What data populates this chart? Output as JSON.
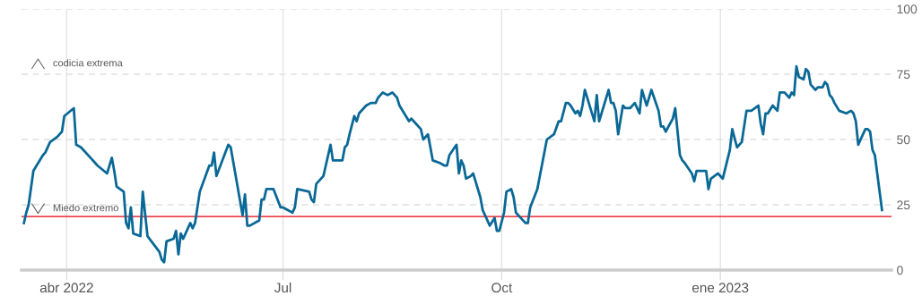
{
  "chart_data": {
    "type": "line",
    "x": [
      "2022-03-14",
      "2022-03-15",
      "2022-03-16",
      "2022-03-18",
      "2022-03-20",
      "2022-03-22",
      "2022-03-23",
      "2022-03-25",
      "2022-03-28",
      "2022-03-29",
      "2022-03-30",
      "2022-03-31",
      "2022-04-04",
      "2022-04-05",
      "2022-04-07",
      "2022-04-11",
      "2022-04-13",
      "2022-04-14",
      "2022-04-18",
      "2022-04-20",
      "2022-04-21",
      "2022-04-22",
      "2022-04-25",
      "2022-04-26",
      "2022-04-27",
      "2022-04-28",
      "2022-04-29",
      "2022-05-02",
      "2022-05-03",
      "2022-05-05",
      "2022-05-10",
      "2022-05-11",
      "2022-05-12",
      "2022-05-13",
      "2022-05-16",
      "2022-05-17",
      "2022-05-18",
      "2022-05-19",
      "2022-05-20",
      "2022-05-23",
      "2022-05-24",
      "2022-05-25",
      "2022-05-27",
      "2022-05-31",
      "2022-06-01",
      "2022-06-02",
      "2022-06-03",
      "2022-06-08",
      "2022-06-09",
      "2022-06-14",
      "2022-06-15",
      "2022-06-16",
      "2022-06-17",
      "2022-06-21",
      "2022-06-22",
      "2022-06-23",
      "2022-06-24",
      "2022-06-27",
      "2022-06-30",
      "2022-07-01",
      "2022-07-05",
      "2022-07-06",
      "2022-07-07",
      "2022-07-12",
      "2022-07-13",
      "2022-07-14",
      "2022-07-15",
      "2022-07-18",
      "2022-07-19",
      "2022-07-21",
      "2022-07-22",
      "2022-07-26",
      "2022-07-27",
      "2022-07-28",
      "2022-07-29",
      "2022-07-31",
      "2022-08-01",
      "2022-08-02",
      "2022-08-05",
      "2022-08-07",
      "2022-08-09",
      "2022-08-10",
      "2022-08-12",
      "2022-08-14",
      "2022-08-16",
      "2022-08-18",
      "2022-08-19",
      "2022-08-21",
      "2022-08-23",
      "2022-08-24",
      "2022-08-26",
      "2022-08-28",
      "2022-08-29",
      "2022-08-31",
      "2022-09-02",
      "2022-09-05",
      "2022-09-07",
      "2022-09-08",
      "2022-09-09",
      "2022-09-12",
      "2022-09-13",
      "2022-09-14",
      "2022-09-15",
      "2022-09-16",
      "2022-09-18",
      "2022-09-19",
      "2022-09-21",
      "2022-09-22",
      "2022-09-23",
      "2022-09-25",
      "2022-09-26",
      "2022-09-28",
      "2022-09-29",
      "2022-09-30",
      "2022-10-02",
      "2022-10-03",
      "2022-10-05",
      "2022-10-06",
      "2022-10-07",
      "2022-10-09",
      "2022-10-11",
      "2022-10-12",
      "2022-10-13",
      "2022-10-16",
      "2022-10-20",
      "2022-10-23",
      "2022-10-25",
      "2022-10-26",
      "2022-10-28",
      "2022-10-29",
      "2022-10-30",
      "2022-11-01",
      "2022-11-02",
      "2022-11-03",
      "2022-11-04",
      "2022-11-05",
      "2022-11-06",
      "2022-11-09",
      "2022-11-10",
      "2022-11-11",
      "2022-11-15",
      "2022-11-16",
      "2022-11-17",
      "2022-11-18",
      "2022-11-19",
      "2022-11-21",
      "2022-11-22",
      "2022-11-24",
      "2022-11-26",
      "2022-11-28",
      "2022-11-29",
      "2022-12-01",
      "2022-12-03",
      "2022-12-06",
      "2022-12-07",
      "2022-12-08",
      "2022-12-09",
      "2022-12-12",
      "2022-12-13",
      "2022-12-15",
      "2022-12-16",
      "2022-12-17",
      "2022-12-20",
      "2022-12-21",
      "2022-12-22",
      "2022-12-26",
      "2022-12-27",
      "2022-12-28",
      "2022-12-31",
      "2023-01-02",
      "2023-01-05",
      "2023-01-06",
      "2023-01-08",
      "2023-01-10",
      "2023-01-11",
      "2023-01-12",
      "2023-01-14",
      "2023-01-17",
      "2023-01-18",
      "2023-01-19",
      "2023-01-20",
      "2023-01-21",
      "2023-01-23",
      "2023-01-25",
      "2023-01-26",
      "2023-01-27",
      "2023-01-28",
      "2023-01-30",
      "2023-01-31",
      "2023-02-01",
      "2023-02-02",
      "2023-02-03",
      "2023-02-05",
      "2023-02-06",
      "2023-02-07",
      "2023-02-08",
      "2023-02-10",
      "2023-02-11",
      "2023-02-13",
      "2023-02-14",
      "2023-02-15",
      "2023-02-16",
      "2023-02-17",
      "2023-02-18",
      "2023-02-20",
      "2023-02-23",
      "2023-02-25",
      "2023-02-26",
      "2023-02-27",
      "2023-02-28",
      "2023-03-03",
      "2023-03-04",
      "2023-03-05",
      "2023-03-06",
      "2023-03-07",
      "2023-03-10"
    ],
    "series": [
      {
        "color": "#0a6896",
        "values": [
          18,
          22,
          25,
          38,
          41,
          44,
          45,
          49,
          51,
          52,
          53,
          59,
          62,
          48,
          47,
          43,
          41,
          40,
          37,
          43,
          38,
          32,
          30,
          18,
          16,
          24,
          14,
          13,
          30,
          13,
          7,
          4,
          3,
          11,
          12,
          15,
          6,
          14,
          12,
          18,
          16,
          18,
          30,
          40,
          40,
          45,
          36,
          48,
          47,
          21,
          29,
          17,
          17,
          19,
          27,
          27,
          31,
          31,
          24,
          24,
          22,
          24,
          31,
          30,
          27,
          26,
          33,
          36,
          40,
          48,
          42,
          42,
          47,
          48,
          52,
          59,
          57,
          60,
          63,
          64,
          64,
          66,
          68,
          67,
          68,
          66,
          63,
          60,
          57,
          58,
          56,
          54,
          50,
          52,
          42,
          41,
          40,
          40,
          44,
          48,
          37,
          42,
          40,
          35,
          36,
          37,
          31,
          28,
          23,
          19,
          17,
          20,
          15,
          15,
          22,
          30,
          31,
          28,
          22,
          20,
          18,
          18,
          24,
          31,
          50,
          52,
          57,
          57,
          64,
          64,
          63,
          60,
          61,
          59,
          63,
          69,
          66,
          57,
          67,
          57,
          69,
          64,
          64,
          61,
          52,
          63,
          62,
          62,
          64,
          60,
          69,
          63,
          69,
          61,
          55,
          55,
          53,
          58,
          62,
          44,
          42,
          41,
          37,
          34,
          38,
          38,
          31,
          35,
          37,
          35,
          46,
          54,
          47,
          49,
          55,
          61,
          61,
          63,
          56,
          52,
          60,
          60,
          63,
          61,
          68,
          68,
          68,
          66,
          68,
          67,
          78,
          74,
          73,
          77,
          76,
          71,
          69,
          70,
          70,
          72,
          71,
          67,
          66,
          64,
          61,
          60,
          61,
          60,
          57,
          48,
          54,
          54,
          53,
          46,
          44,
          23
        ]
      }
    ],
    "xlim": [
      "2022-03-13",
      "2023-03-14"
    ],
    "xticks": [
      {
        "value": "2022-04-01",
        "label": "abr 2022"
      },
      {
        "value": "2022-07-01",
        "label": "Jul"
      },
      {
        "value": "2022-10-01",
        "label": "Oct"
      },
      {
        "value": "2023-01-01",
        "label": "ene 2023"
      }
    ],
    "ylim": [
      0,
      100
    ],
    "yticks": [
      0,
      25,
      50,
      75,
      100
    ],
    "grid": true,
    "marker": "none",
    "line_style": "solid",
    "ref_lines": [
      {
        "axis": "y",
        "value": 20.5,
        "color": "#e8000b"
      }
    ],
    "annotations": [
      "codicia extrema",
      "Miedo extremo"
    ]
  }
}
